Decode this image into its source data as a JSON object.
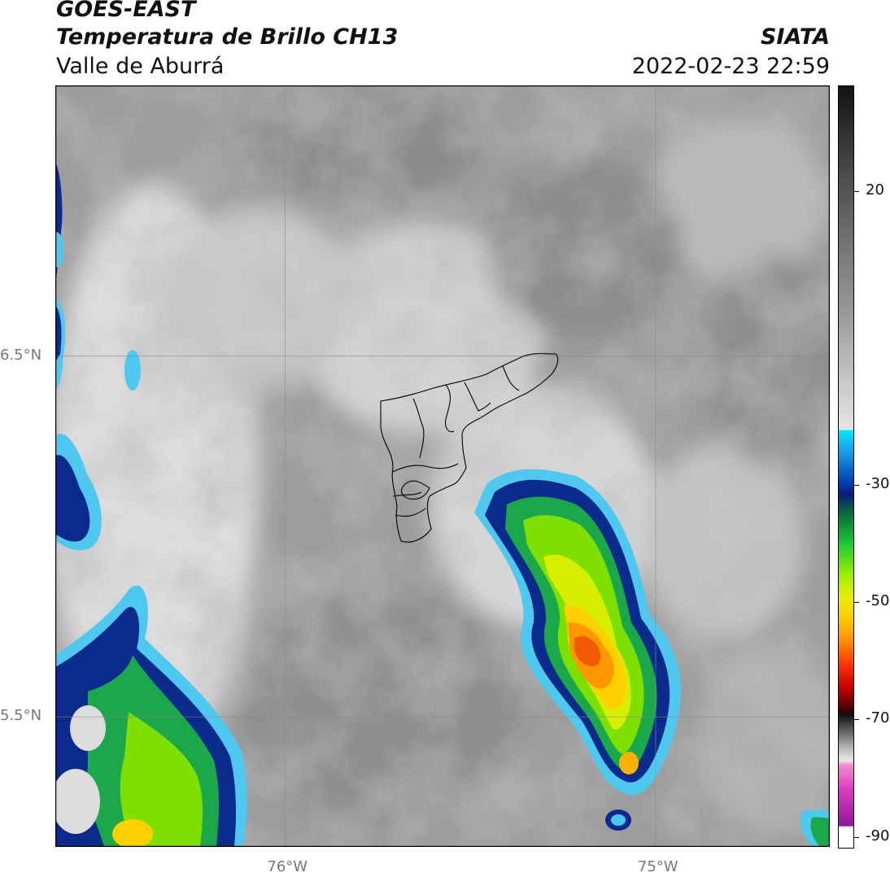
{
  "header": {
    "satellite": "GOES-EAST",
    "product": "Temperatura de Brillo CH13",
    "region": "Valle de Aburrá",
    "agency": "SIATA",
    "datetime": "2022-02-23 22:59"
  },
  "map": {
    "lat_ticks": [
      {
        "value": 6.5,
        "label": "6.5°N"
      },
      {
        "value": 5.5,
        "label": "5.5°N"
      }
    ],
    "lon_ticks": [
      {
        "value": -76,
        "label": "76°W"
      },
      {
        "value": -75,
        "label": "75°W"
      }
    ],
    "extent": {
      "lon_min": -76.62,
      "lon_max": -74.53,
      "lat_min": 5.14,
      "lat_max": 7.25
    }
  },
  "colorbar": {
    "ticks": [
      {
        "value": 20,
        "label": "20"
      },
      {
        "value": -30,
        "label": "-30"
      },
      {
        "value": -50,
        "label": "-50"
      },
      {
        "value": -70,
        "label": "-70"
      },
      {
        "value": -90,
        "label": "-90"
      }
    ],
    "range": [
      -92,
      38
    ]
  }
}
